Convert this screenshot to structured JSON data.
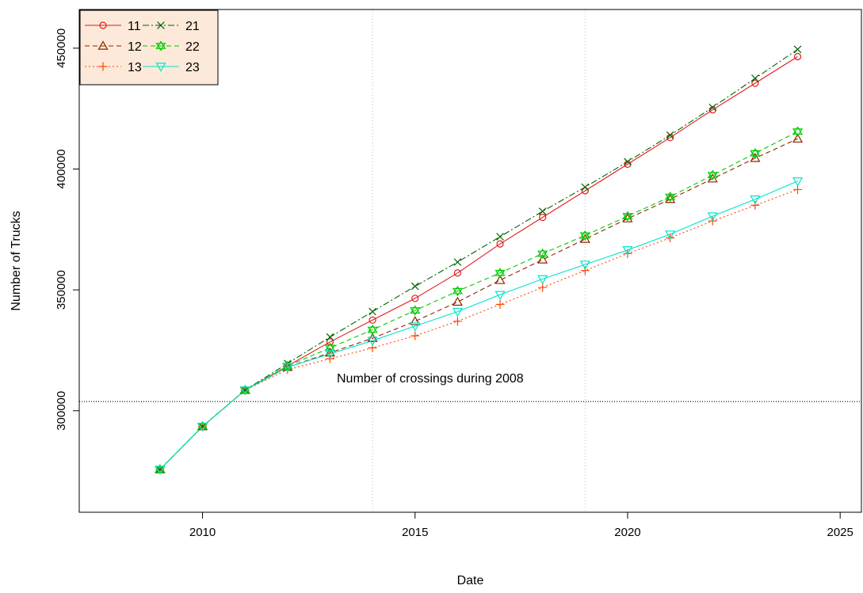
{
  "chart_data": {
    "type": "line",
    "xlabel": "Date",
    "ylabel": "Number of Trucks",
    "xlim": [
      2007.1,
      2025.5
    ],
    "ylim": [
      258000,
      466000
    ],
    "x_ticks": [
      2010,
      2015,
      2020,
      2025
    ],
    "y_ticks": [
      300000,
      350000,
      400000,
      450000
    ],
    "x_tick_labels": [
      "2010",
      "2015",
      "2020",
      "2025"
    ],
    "y_tick_labels": [
      "300000",
      "350000",
      "400000",
      "450000"
    ],
    "vertical_reference_lines": [
      2014,
      2019
    ],
    "horizontal_reference": {
      "y": 303800,
      "label": "Number of crossings during 2008"
    },
    "grid": false,
    "legend_position": "top-left",
    "x": [
      2009,
      2010,
      2011,
      2012,
      2013,
      2014,
      2015,
      2016,
      2017,
      2018,
      2019,
      2020,
      2021,
      2022,
      2023,
      2024
    ],
    "series": [
      {
        "name": "11",
        "color": "#e41a1c",
        "marker": "circle",
        "line": "solid",
        "values": [
          275700,
          293500,
          308500,
          318500,
          328500,
          337500,
          346500,
          357000,
          369000,
          380000,
          391000,
          402000,
          413000,
          424500,
          435500,
          446500
        ]
      },
      {
        "name": "12",
        "color": "#8b2500",
        "marker": "triangle-up",
        "line": "dashed",
        "values": [
          275700,
          293500,
          308500,
          318000,
          324000,
          330000,
          337000,
          345000,
          354000,
          362500,
          371000,
          379500,
          387500,
          396000,
          404500,
          412500
        ]
      },
      {
        "name": "13",
        "color": "#ff4500",
        "marker": "plus",
        "line": "dotted",
        "values": [
          275700,
          293500,
          308500,
          317000,
          321500,
          326000,
          331000,
          337000,
          344000,
          351000,
          358000,
          365000,
          371500,
          378500,
          385000,
          391500
        ]
      },
      {
        "name": "21",
        "color": "#006400",
        "marker": "cross",
        "line": "dashdot",
        "values": [
          275700,
          293500,
          308500,
          319500,
          330500,
          341000,
          351500,
          361500,
          372000,
          382500,
          392500,
          403000,
          414000,
          425500,
          437500,
          449500
        ]
      },
      {
        "name": "22",
        "color": "#00cc00",
        "marker": "star-of-david",
        "line": "dashed",
        "values": [
          275700,
          293500,
          308500,
          318500,
          326000,
          333500,
          341500,
          349500,
          357000,
          365000,
          372500,
          380500,
          388500,
          397500,
          406500,
          415500
        ]
      },
      {
        "name": "23",
        "color": "#00e5c8",
        "marker": "triangle-down",
        "line": "solid",
        "values": [
          275700,
          293500,
          308500,
          318000,
          323500,
          329000,
          335000,
          341000,
          348000,
          354500,
          360500,
          366500,
          373000,
          380500,
          387500,
          395000
        ]
      }
    ]
  }
}
